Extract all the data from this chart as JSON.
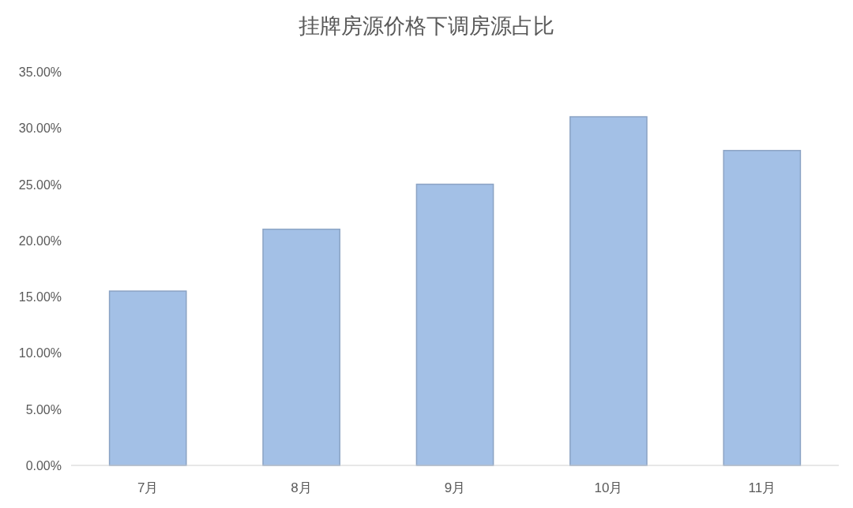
{
  "chart_data": {
    "type": "bar",
    "title": "挂牌房源价格下调房源占比",
    "categories": [
      "7月",
      "8月",
      "9月",
      "10月",
      "11月"
    ],
    "values": [
      15.5,
      21,
      25,
      31,
      28
    ],
    "color": "#a3c0e6",
    "ylim": [
      0,
      35
    ],
    "yticks": [
      {
        "value": 0,
        "label": "0.00%"
      },
      {
        "value": 5,
        "label": "5.00%"
      },
      {
        "value": 10,
        "label": "10.00%"
      },
      {
        "value": 15,
        "label": "15.00%"
      },
      {
        "value": 20,
        "label": "20.00%"
      },
      {
        "value": 25,
        "label": "25.00%"
      },
      {
        "value": 30,
        "label": "30.00%"
      },
      {
        "value": 35,
        "label": "35.00%"
      }
    ],
    "grid": false
  }
}
